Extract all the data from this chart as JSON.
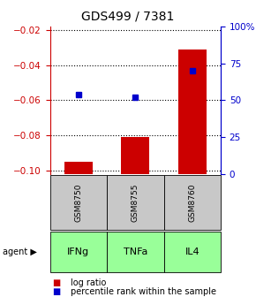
{
  "title": "GDS499 / 7381",
  "samples": [
    "GSM8750",
    "GSM8755",
    "GSM8760"
  ],
  "agents": [
    "IFNg",
    "TNFa",
    "IL4"
  ],
  "log_ratios": [
    -0.095,
    -0.081,
    -0.031
  ],
  "percentile_ranks": [
    54,
    52,
    70
  ],
  "ylim_left": [
    -0.102,
    -0.018
  ],
  "ylim_right": [
    0,
    100
  ],
  "left_ticks": [
    -0.1,
    -0.08,
    -0.06,
    -0.04,
    -0.02
  ],
  "right_ticks": [
    0,
    25,
    50,
    75,
    100
  ],
  "bar_color": "#cc0000",
  "dot_color": "#0000cc",
  "bar_width": 0.5,
  "gray_box_color": "#c8c8c8",
  "green_box_color": "#99ff99",
  "left_axis_color": "#cc0000",
  "right_axis_color": "#0000cc",
  "title_fontsize": 10,
  "tick_fontsize": 7.5,
  "legend_fontsize": 7,
  "sample_fontsize": 6.5,
  "agent_fontsize": 8
}
